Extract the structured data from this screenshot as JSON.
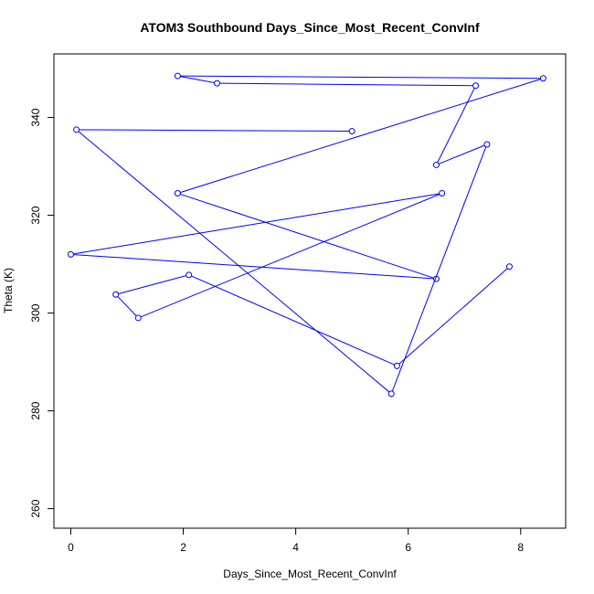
{
  "chart_data": {
    "type": "line",
    "title": "ATOM3 Southbound Days_Since_Most_Recent_ConvInf",
    "xlabel": "Days_Since_Most_Recent_ConvInf",
    "ylabel": "Theta (K)",
    "xlim": [
      -0.3,
      8.8
    ],
    "ylim": [
      256,
      353
    ],
    "xticks": [
      0,
      2,
      4,
      6,
      8
    ],
    "yticks": [
      260,
      280,
      300,
      320,
      340
    ],
    "series": [
      {
        "color": "#0000ff",
        "marker": "open-circle",
        "points": [
          {
            "x": 7.8,
            "y": 309.5
          },
          {
            "x": 5.8,
            "y": 289.2
          },
          {
            "x": 2.1,
            "y": 307.8
          },
          {
            "x": 0.8,
            "y": 303.8
          },
          {
            "x": 1.2,
            "y": 299.0
          },
          {
            "x": 6.6,
            "y": 324.5
          },
          {
            "x": 0.0,
            "y": 312.0
          },
          {
            "x": 6.5,
            "y": 307.0
          },
          {
            "x": 1.9,
            "y": 324.5
          },
          {
            "x": 8.4,
            "y": 348.0
          },
          {
            "x": 1.9,
            "y": 348.5
          },
          {
            "x": 2.6,
            "y": 347.0
          },
          {
            "x": 7.2,
            "y": 346.5
          },
          {
            "x": 6.5,
            "y": 330.3
          },
          {
            "x": 7.4,
            "y": 334.5
          },
          {
            "x": 5.7,
            "y": 283.5
          },
          {
            "x": 0.1,
            "y": 337.5
          },
          {
            "x": 5.0,
            "y": 337.2
          }
        ]
      }
    ]
  }
}
